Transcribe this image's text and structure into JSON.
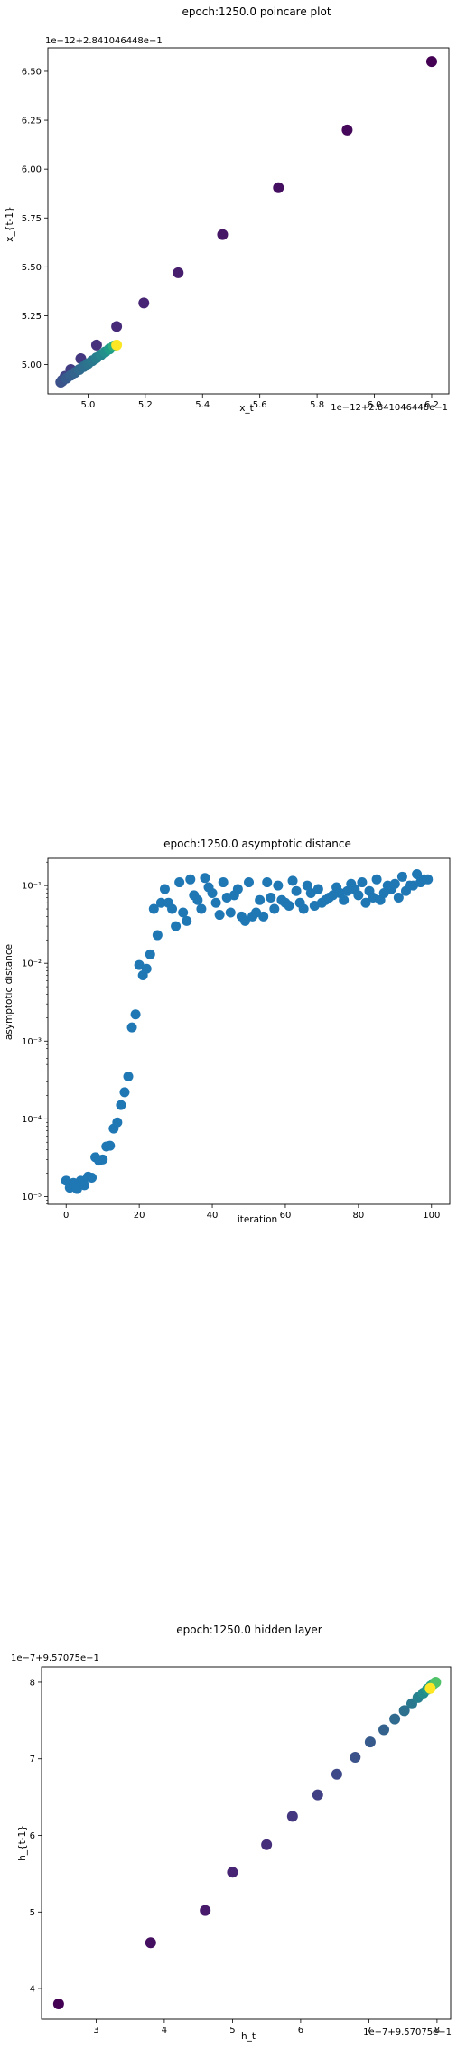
{
  "chart_data": [
    {
      "type": "scatter",
      "title": "epoch:1250.0 poincare plot",
      "xlabel": "x_t",
      "ylabel": "x_{t-1}",
      "x_offset_text": "1e−12+2.841046448e−1",
      "y_offset_text": "1e−12+2.841046448e−1",
      "xlim": [
        4.86,
        6.26
      ],
      "ylim": [
        4.85,
        6.62
      ],
      "xticks": [
        5.0,
        5.2,
        5.4,
        5.6,
        5.8,
        6.0,
        6.2
      ],
      "xtick_labels": [
        "5.0",
        "5.2",
        "5.4",
        "5.6",
        "5.8",
        "6.0",
        "6.2"
      ],
      "yticks": [
        5.0,
        5.25,
        5.5,
        5.75,
        6.0,
        6.25,
        6.5
      ],
      "ytick_labels": [
        "5.00",
        "5.25",
        "5.50",
        "5.75",
        "6.00",
        "6.25",
        "6.50"
      ],
      "colormap": "viridis",
      "points": [
        [
          6.2,
          6.55,
          0.0
        ],
        [
          5.905,
          6.2,
          0.02
        ],
        [
          5.665,
          5.905,
          0.04
        ],
        [
          5.47,
          5.665,
          0.06
        ],
        [
          5.315,
          5.47,
          0.08
        ],
        [
          5.195,
          5.315,
          0.1
        ],
        [
          5.1,
          5.195,
          0.12
        ],
        [
          5.03,
          5.1,
          0.14
        ],
        [
          4.975,
          5.03,
          0.16
        ],
        [
          4.94,
          4.975,
          0.18
        ],
        [
          4.92,
          4.94,
          0.2
        ],
        [
          4.91,
          4.92,
          0.22
        ],
        [
          4.905,
          4.91,
          0.24
        ],
        [
          4.91,
          4.915,
          0.26
        ],
        [
          4.925,
          4.93,
          0.28
        ],
        [
          4.94,
          4.945,
          0.3
        ],
        [
          4.955,
          4.96,
          0.32
        ],
        [
          4.97,
          4.975,
          0.34
        ],
        [
          4.985,
          4.99,
          0.36
        ],
        [
          5.0,
          5.005,
          0.38
        ],
        [
          5.015,
          5.02,
          0.4
        ],
        [
          5.03,
          5.035,
          0.43
        ],
        [
          5.045,
          5.05,
          0.46
        ],
        [
          5.06,
          5.065,
          0.5
        ],
        [
          5.075,
          5.08,
          0.55
        ],
        [
          5.09,
          5.095,
          0.62
        ],
        [
          5.1,
          5.1,
          1.0
        ]
      ]
    },
    {
      "type": "scatter",
      "title": "epoch:1250.0 asymptotic distance",
      "xlabel": "iteration",
      "ylabel": "asymptotic distance",
      "yscale": "log",
      "xlim": [
        -5,
        105
      ],
      "ylim_log10": [
        -5.1,
        -0.65
      ],
      "xticks": [
        0,
        20,
        40,
        60,
        80,
        100
      ],
      "xtick_labels": [
        "0",
        "20",
        "40",
        "60",
        "80",
        "100"
      ],
      "yticks_log10": [
        -5,
        -4,
        -3,
        -2,
        -1
      ],
      "ytick_labels": [
        "10⁻⁵",
        "10⁻⁴",
        "10⁻³",
        "10⁻²",
        "10⁻¹"
      ],
      "color": "#1f77b4",
      "x": [
        0,
        1,
        2,
        3,
        4,
        5,
        6,
        7,
        8,
        9,
        10,
        11,
        12,
        13,
        14,
        15,
        16,
        17,
        18,
        19,
        20,
        21,
        22,
        23,
        24,
        25,
        26,
        27,
        28,
        29,
        30,
        31,
        32,
        33,
        34,
        35,
        36,
        37,
        38,
        39,
        40,
        41,
        42,
        43,
        44,
        45,
        46,
        47,
        48,
        49,
        50,
        51,
        52,
        53,
        54,
        55,
        56,
        57,
        58,
        59,
        60,
        61,
        62,
        63,
        64,
        65,
        66,
        67,
        68,
        69,
        70,
        71,
        72,
        73,
        74,
        75,
        76,
        77,
        78,
        79,
        80,
        81,
        82,
        83,
        84,
        85,
        86,
        87,
        88,
        89,
        90,
        91,
        92,
        93,
        94,
        95,
        96,
        97,
        98,
        99
      ],
      "y": [
        1.6e-05,
        1.3e-05,
        1.5e-05,
        1.25e-05,
        1.6e-05,
        1.4e-05,
        1.8e-05,
        1.75e-05,
        3.2e-05,
        2.9e-05,
        3e-05,
        4.4e-05,
        4.5e-05,
        7.5e-05,
        9e-05,
        0.00015,
        0.00022,
        0.00035,
        0.0015,
        0.0022,
        0.0095,
        0.007,
        0.0085,
        0.013,
        0.05,
        0.023,
        0.06,
        0.09,
        0.06,
        0.05,
        0.03,
        0.11,
        0.045,
        0.035,
        0.12,
        0.075,
        0.065,
        0.05,
        0.125,
        0.095,
        0.08,
        0.06,
        0.042,
        0.11,
        0.07,
        0.045,
        0.075,
        0.09,
        0.04,
        0.035,
        0.11,
        0.04,
        0.045,
        0.065,
        0.04,
        0.11,
        0.07,
        0.05,
        0.1,
        0.065,
        0.06,
        0.055,
        0.115,
        0.085,
        0.06,
        0.05,
        0.1,
        0.08,
        0.055,
        0.09,
        0.06,
        0.065,
        0.07,
        0.075,
        0.095,
        0.08,
        0.065,
        0.085,
        0.105,
        0.09,
        0.075,
        0.11,
        0.06,
        0.085,
        0.07,
        0.12,
        0.065,
        0.08,
        0.1,
        0.09,
        0.105,
        0.07,
        0.13,
        0.085,
        0.1,
        0.1,
        0.14,
        0.11,
        0.12,
        0.12
      ]
    },
    {
      "type": "scatter",
      "title": "epoch:1250.0 hidden layer",
      "xlabel": "h_t",
      "ylabel": "h_{t-1}",
      "x_offset_text": "1e−7+9.57075e−1",
      "y_offset_text": "1e−7+9.57075e−1",
      "xlim": [
        2.2,
        8.2
      ],
      "ylim": [
        3.6,
        8.2
      ],
      "xticks": [
        3,
        4,
        5,
        6,
        7,
        8
      ],
      "xtick_labels": [
        "3",
        "4",
        "5",
        "6",
        "7",
        "8"
      ],
      "yticks": [
        4,
        5,
        6,
        7,
        8
      ],
      "ytick_labels": [
        "4",
        "5",
        "6",
        "7",
        "8"
      ],
      "colormap": "viridis",
      "points": [
        [
          2.45,
          3.8,
          0.0
        ],
        [
          3.8,
          4.6,
          0.04
        ],
        [
          4.6,
          5.02,
          0.07
        ],
        [
          5.0,
          5.52,
          0.1
        ],
        [
          5.5,
          5.88,
          0.13
        ],
        [
          5.88,
          6.25,
          0.16
        ],
        [
          6.25,
          6.53,
          0.19
        ],
        [
          6.53,
          6.8,
          0.22
        ],
        [
          6.8,
          7.02,
          0.25
        ],
        [
          7.02,
          7.22,
          0.28
        ],
        [
          7.22,
          7.38,
          0.31
        ],
        [
          7.38,
          7.52,
          0.34
        ],
        [
          7.52,
          7.63,
          0.37
        ],
        [
          7.63,
          7.72,
          0.4
        ],
        [
          7.72,
          7.8,
          0.44
        ],
        [
          7.8,
          7.86,
          0.48
        ],
        [
          7.86,
          7.91,
          0.53
        ],
        [
          7.91,
          7.95,
          0.58
        ],
        [
          7.95,
          7.98,
          0.64
        ],
        [
          7.98,
          8.0,
          0.72
        ],
        [
          7.9,
          7.92,
          1.0
        ]
      ]
    }
  ]
}
